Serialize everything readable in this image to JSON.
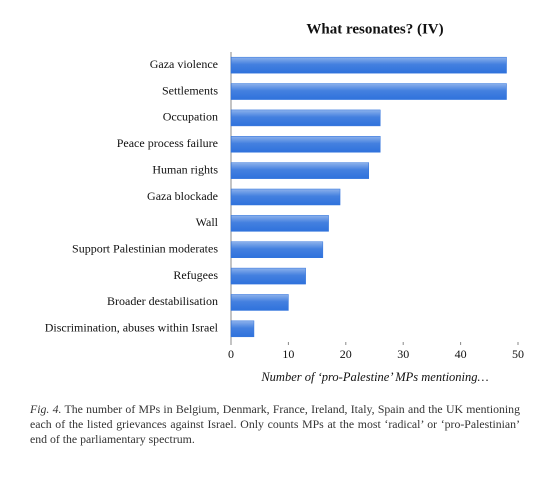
{
  "chart_data": {
    "type": "barh",
    "title": "What resonates? (IV)",
    "categories": [
      "Gaza violence",
      "Settlements",
      "Occupation",
      "Peace process failure",
      "Human rights",
      "Gaza blockade",
      "Wall",
      "Support Palestinian moderates",
      "Refugees",
      "Broader destabilisation",
      "Discrimination, abuses within Israel"
    ],
    "values": [
      48,
      48,
      26,
      26,
      24,
      19,
      17,
      16,
      13,
      10,
      4
    ],
    "color": "#2f72dc",
    "xlim": [
      0,
      50
    ],
    "xticks": [
      0,
      10,
      20,
      30,
      40,
      50
    ],
    "xlabel": "Number of ‘pro-Palestine’ MPs mentioning…",
    "grid": false
  },
  "caption_label": "Fig. 4.",
  "caption": "The number of MPs in Belgium, Denmark, France, Ireland, Italy, Spain and the UK mentioning each of the listed grievances against Israel.  Only counts MPs at the most ‘radical’ or ‘pro-Palestinian’ end of the parliamentary spectrum."
}
